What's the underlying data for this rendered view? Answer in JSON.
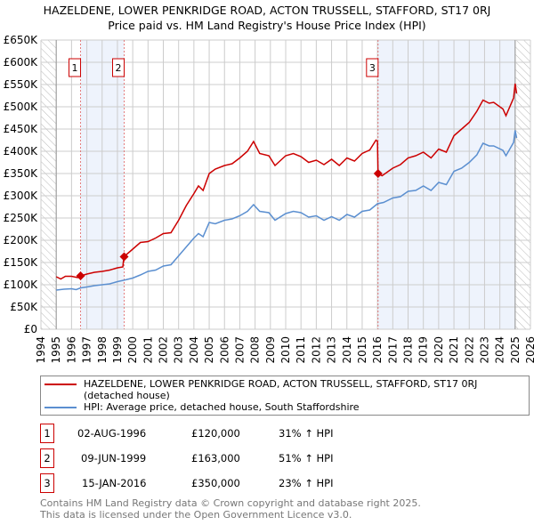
{
  "chart_data": {
    "type": "line",
    "title": "HAZELDENE, LOWER PENKRIDGE ROAD, ACTON TRUSSELL, STAFFORD, ST17 0RJ",
    "subtitle": "Price paid vs. HM Land Registry's House Price Index (HPI)",
    "xlim": [
      1994,
      2026
    ],
    "ylim": [
      0,
      650000
    ],
    "x_ticks": [
      "1994",
      "1995",
      "1996",
      "1997",
      "1998",
      "1999",
      "2000",
      "2001",
      "2002",
      "2003",
      "2004",
      "2005",
      "2006",
      "2007",
      "2008",
      "2009",
      "2010",
      "2011",
      "2012",
      "2013",
      "2014",
      "2015",
      "2016",
      "2017",
      "2018",
      "2019",
      "2020",
      "2021",
      "2022",
      "2023",
      "2024",
      "2025",
      "2026"
    ],
    "y_ticks": [
      {
        "v": 0,
        "l": "£0"
      },
      {
        "v": 50000,
        "l": "£50K"
      },
      {
        "v": 100000,
        "l": "£100K"
      },
      {
        "v": 150000,
        "l": "£150K"
      },
      {
        "v": 200000,
        "l": "£200K"
      },
      {
        "v": 250000,
        "l": "£250K"
      },
      {
        "v": 300000,
        "l": "£300K"
      },
      {
        "v": 350000,
        "l": "£350K"
      },
      {
        "v": 400000,
        "l": "£400K"
      },
      {
        "v": 450000,
        "l": "£450K"
      },
      {
        "v": 500000,
        "l": "£500K"
      },
      {
        "v": 550000,
        "l": "£550K"
      },
      {
        "v": 600000,
        "l": "£600K"
      },
      {
        "v": 650000,
        "l": "£650K"
      }
    ],
    "grid": true,
    "series": [
      {
        "name": "HAZELDENE, LOWER PENKRIDGE ROAD, ACTON TRUSSELL, STAFFORD, ST17 0RJ (detached house)",
        "color": "#cc0000",
        "x": [
          1995,
          1995.3,
          1995.6,
          1996,
          1996.4,
          1996.6,
          1997,
          1997.5,
          1998,
          1998.5,
          1999,
          1999.35,
          1999.42,
          2000,
          2000.5,
          2001,
          2001.5,
          2002,
          2002.5,
          2003,
          2003.5,
          2004,
          2004.3,
          2004.6,
          2005,
          2005.4,
          2006,
          2006.5,
          2007,
          2007.5,
          2007.9,
          2008.3,
          2008.9,
          2009.3,
          2010,
          2010.5,
          2011,
          2011.5,
          2012,
          2012.5,
          2013,
          2013.5,
          2014,
          2014.5,
          2015,
          2015.5,
          2015.9,
          2016.0,
          2016.04,
          2016.3,
          2017,
          2017.5,
          2018,
          2018.5,
          2019,
          2019.5,
          2020,
          2020.5,
          2021,
          2021.5,
          2022,
          2022.5,
          2022.9,
          2023.3,
          2023.6,
          2024.2,
          2024.4,
          2024.9,
          2025.0,
          2025.1
        ],
        "y": [
          118000,
          113000,
          119000,
          119000,
          116000,
          120000,
          124000,
          128000,
          130000,
          133000,
          138000,
          140000,
          163000,
          180000,
          195000,
          197000,
          205000,
          215000,
          217000,
          245000,
          278000,
          305000,
          322000,
          312000,
          350000,
          360000,
          368000,
          372000,
          385000,
          400000,
          422000,
          395000,
          390000,
          368000,
          390000,
          395000,
          388000,
          375000,
          380000,
          370000,
          382000,
          368000,
          385000,
          378000,
          395000,
          403000,
          425000,
          422000,
          350000,
          345000,
          362000,
          370000,
          385000,
          390000,
          398000,
          385000,
          405000,
          398000,
          435000,
          450000,
          465000,
          490000,
          515000,
          508000,
          510000,
          495000,
          480000,
          520000,
          552000,
          530000
        ]
      },
      {
        "name": "HPI: Average price, detached house, South Staffordshire",
        "color": "#5b8fd0",
        "x": [
          1995,
          1995.5,
          1996,
          1996.3,
          1996.6,
          1997,
          1997.5,
          1998,
          1998.5,
          1999,
          1999.4,
          2000,
          2000.5,
          2001,
          2001.5,
          2002,
          2002.5,
          2003,
          2003.5,
          2004,
          2004.3,
          2004.6,
          2005,
          2005.4,
          2006,
          2006.5,
          2007,
          2007.5,
          2007.9,
          2008.3,
          2008.9,
          2009.3,
          2010,
          2010.5,
          2011,
          2011.5,
          2012,
          2012.5,
          2013,
          2013.5,
          2014,
          2014.5,
          2015,
          2015.5,
          2016,
          2016.4,
          2017,
          2017.5,
          2018,
          2018.5,
          2019,
          2019.5,
          2020,
          2020.5,
          2021,
          2021.5,
          2022,
          2022.5,
          2022.9,
          2023.3,
          2023.6,
          2024.2,
          2024.4,
          2024.9,
          2025.0,
          2025.1
        ],
        "y": [
          88000,
          90000,
          91000,
          89000,
          93000,
          95000,
          98000,
          100000,
          102000,
          107000,
          110000,
          115000,
          122000,
          130000,
          133000,
          142000,
          145000,
          165000,
          185000,
          205000,
          215000,
          208000,
          240000,
          237000,
          245000,
          248000,
          255000,
          265000,
          280000,
          265000,
          262000,
          245000,
          260000,
          265000,
          262000,
          252000,
          255000,
          245000,
          253000,
          245000,
          258000,
          252000,
          265000,
          268000,
          282000,
          285000,
          295000,
          298000,
          310000,
          312000,
          322000,
          312000,
          330000,
          325000,
          355000,
          362000,
          375000,
          392000,
          418000,
          412000,
          412000,
          402000,
          390000,
          420000,
          447000,
          430000
        ]
      }
    ],
    "annotations": [
      {
        "label": "1",
        "x": 1996.59,
        "price": 120000,
        "date": "02-AUG-1996",
        "price_text": "£120,000",
        "hpi": "31% ↑ HPI"
      },
      {
        "label": "2",
        "x": 1999.44,
        "price": 163000,
        "date": "09-JUN-1999",
        "price_text": "£163,000",
        "hpi": "51% ↑ HPI"
      },
      {
        "label": "3",
        "x": 2016.04,
        "price": 350000,
        "date": "15-JAN-2016",
        "price_text": "£350,000",
        "hpi": "23% ↑ HPI"
      }
    ]
  },
  "footer": [
    "Contains HM Land Registry data © Crown copyright and database right 2025.",
    "This data is licensed under the Open Government Licence v3.0."
  ]
}
